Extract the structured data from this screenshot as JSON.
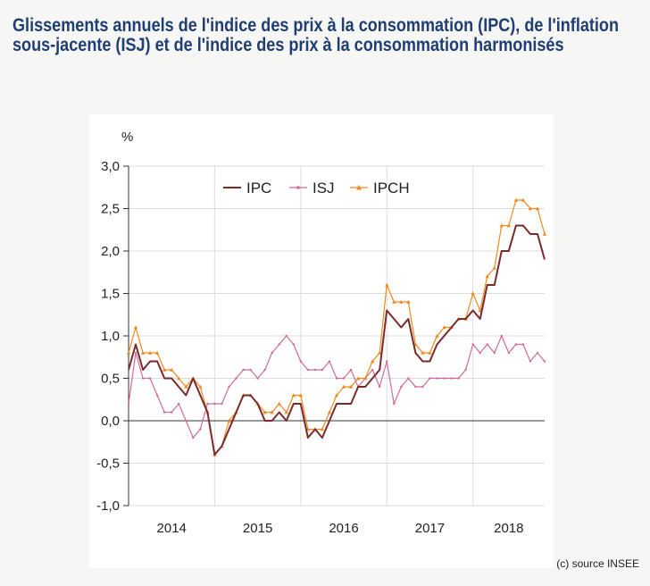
{
  "title": "Glissements annuels de l'indice des prix à la consommation (IPC), de l'inflation sous-jacente (ISJ)  et de l'indice des prix à la consommation harmonisés",
  "source": "(c) source INSEE",
  "chart_data": {
    "type": "line",
    "ylabel": "%",
    "ylim": [
      -1.0,
      3.0
    ],
    "yticks": [
      "3,0",
      "2,5",
      "2,0",
      "1,5",
      "1,0",
      "0,5",
      "0,0",
      "-0,5",
      "-1,0"
    ],
    "xticks": [
      "2014",
      "2015",
      "2016",
      "2017",
      "2018"
    ],
    "x_start": "2014-01",
    "grid": true,
    "legend_position": "top-center",
    "series": [
      {
        "name": "IPC",
        "color": "#7a2a2a",
        "values": [
          0.6,
          0.9,
          0.6,
          0.7,
          0.7,
          0.5,
          0.5,
          0.4,
          0.3,
          0.5,
          0.3,
          0.1,
          -0.4,
          -0.3,
          -0.1,
          0.1,
          0.3,
          0.3,
          0.2,
          0.0,
          0.0,
          0.1,
          0.0,
          0.2,
          0.2,
          -0.2,
          -0.1,
          -0.2,
          0.0,
          0.2,
          0.2,
          0.2,
          0.4,
          0.4,
          0.5,
          0.6,
          1.3,
          1.2,
          1.1,
          1.2,
          0.8,
          0.7,
          0.7,
          0.9,
          1.0,
          1.1,
          1.2,
          1.2,
          1.3,
          1.2,
          1.6,
          1.6,
          2.0,
          2.0,
          2.3,
          2.3,
          2.2,
          2.2,
          1.9
        ]
      },
      {
        "name": "ISJ",
        "color": "#d06a9a",
        "values": [
          0.2,
          0.8,
          0.5,
          0.5,
          0.3,
          0.1,
          0.1,
          0.2,
          0.0,
          -0.2,
          -0.1,
          0.2,
          0.2,
          0.2,
          0.4,
          0.5,
          0.6,
          0.6,
          0.5,
          0.6,
          0.8,
          0.9,
          1.0,
          0.9,
          0.7,
          0.6,
          0.6,
          0.6,
          0.7,
          0.5,
          0.5,
          0.6,
          0.4,
          0.5,
          0.6,
          0.4,
          0.7,
          0.2,
          0.4,
          0.5,
          0.4,
          0.4,
          0.5,
          0.5,
          0.5,
          0.5,
          0.5,
          0.6,
          0.9,
          0.8,
          0.9,
          0.8,
          1.0,
          0.8,
          0.9,
          0.9,
          0.7,
          0.8,
          0.7
        ]
      },
      {
        "name": "IPCH",
        "color": "#f08a1e",
        "values": [
          0.8,
          1.1,
          0.8,
          0.8,
          0.8,
          0.6,
          0.6,
          0.5,
          0.4,
          0.5,
          0.4,
          0.1,
          -0.4,
          -0.3,
          0.0,
          0.1,
          0.3,
          0.3,
          0.2,
          0.1,
          0.1,
          0.2,
          0.1,
          0.3,
          0.3,
          -0.1,
          -0.1,
          -0.1,
          0.1,
          0.3,
          0.4,
          0.4,
          0.5,
          0.5,
          0.7,
          0.8,
          1.6,
          1.4,
          1.4,
          1.4,
          0.9,
          0.8,
          0.8,
          1.0,
          1.1,
          1.1,
          1.2,
          1.2,
          1.5,
          1.3,
          1.7,
          1.8,
          2.3,
          2.3,
          2.6,
          2.6,
          2.5,
          2.5,
          2.2
        ]
      }
    ]
  }
}
